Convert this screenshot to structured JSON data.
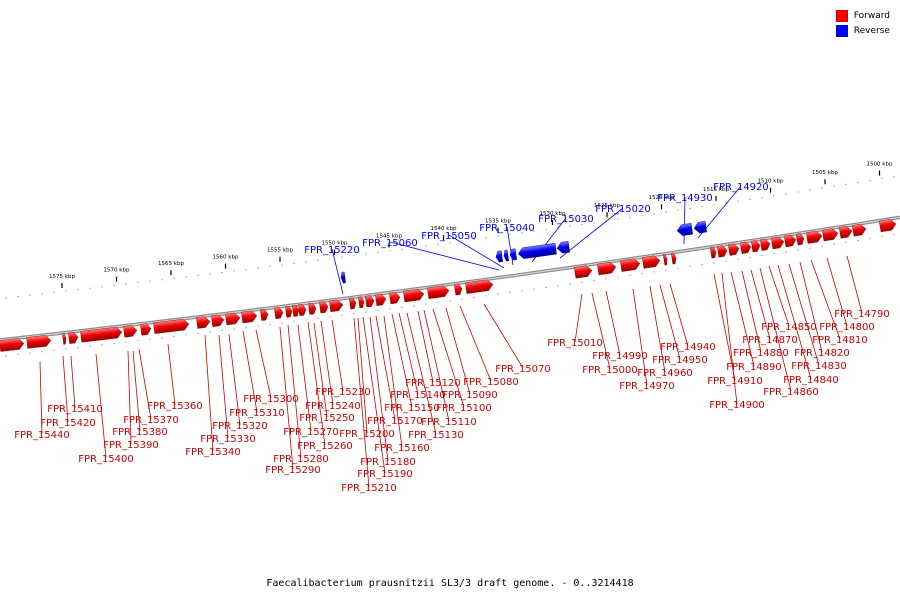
{
  "legend": {
    "forward_label": "Forward",
    "reverse_label": "Reverse",
    "forward_color": "#ff0000",
    "reverse_color": "#0000ff"
  },
  "caption": "Faecalibacterium prausnitzii SL3/3 draft genome. - 0..3214418",
  "ruler": {
    "ticks": [
      "1575 kbp",
      "1570 kbp",
      "1565 kbp",
      "1560 kbp",
      "1555 kbp",
      "1550 kbp",
      "1545 kbp",
      "1540 kbp",
      "1535 kbp",
      "1530 kbp",
      "1525 kbp",
      "1520 kbp",
      "1515 kbp",
      "1510 kbp",
      "1505 kbp",
      "1500 kbp"
    ]
  },
  "reverse_genes": [
    "FPR_15220",
    "FPR_15060",
    "FPR_15050",
    "FPR_15040",
    "FPR_15030",
    "FPR_15020",
    "FPR_14930",
    "FPR_14920"
  ],
  "forward_genes": [
    "FPR_15440",
    "FPR_15420",
    "FPR_15410",
    "FPR_15400",
    "FPR_15390",
    "FPR_15380",
    "FPR_15370",
    "FPR_15360",
    "FPR_15340",
    "FPR_15330",
    "FPR_15320",
    "FPR_15310",
    "FPR_15300",
    "FPR_15290",
    "FPR_15280",
    "FPR_15270",
    "FPR_15260",
    "FPR_15250",
    "FPR_15240",
    "FPR_15230",
    "FPR_15210",
    "FPR_15200",
    "FPR_15190",
    "FPR_15180",
    "FPR_15170",
    "FPR_15160",
    "FPR_15150",
    "FPR_15140",
    "FPR_15130",
    "FPR_15120",
    "FPR_15110",
    "FPR_15100",
    "FPR_15090",
    "FPR_15080",
    "FPR_15070",
    "FPR_15010",
    "FPR_15000",
    "FPR_14990",
    "FPR_14970",
    "FPR_14960",
    "FPR_14950",
    "FPR_14940",
    "FPR_14910",
    "FPR_14900",
    "FPR_14890",
    "FPR_14880",
    "FPR_14870",
    "FPR_14860",
    "FPR_14850",
    "FPR_14840",
    "FPR_14830",
    "FPR_14820",
    "FPR_14810",
    "FPR_14800",
    "FPR_14790"
  ]
}
